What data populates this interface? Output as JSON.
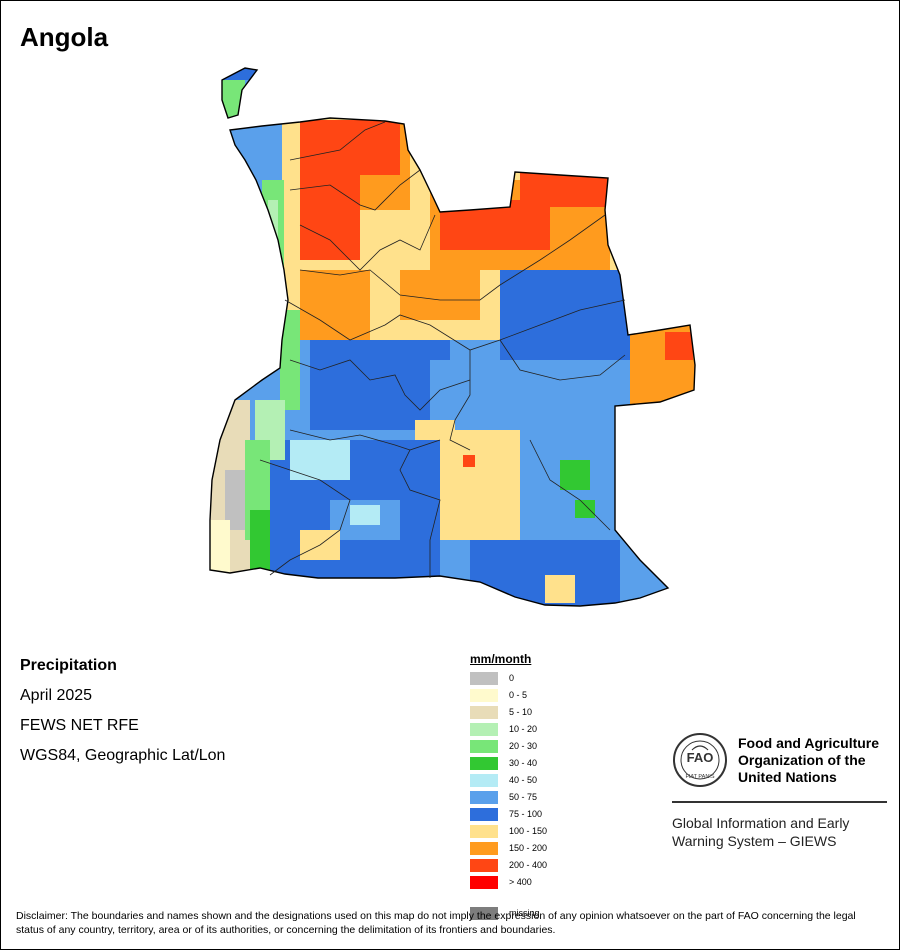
{
  "title": "Angola",
  "info": {
    "variable": "Precipitation",
    "period": "April 2025",
    "source": "FEWS NET RFE",
    "projection": "WGS84, Geographic Lat/Lon"
  },
  "legend": {
    "title": "mm/month",
    "items": [
      {
        "label": "0",
        "color": "#c0c0c0"
      },
      {
        "label": "0 - 5",
        "color": "#fffacd"
      },
      {
        "label": "5 - 10",
        "color": "#e8dcb8"
      },
      {
        "label": "10 - 20",
        "color": "#b4f0b4"
      },
      {
        "label": "20 - 30",
        "color": "#78e678"
      },
      {
        "label": "30 - 40",
        "color": "#32c832"
      },
      {
        "label": "40 - 50",
        "color": "#b4ebf5"
      },
      {
        "label": "50 - 75",
        "color": "#5aa0eb"
      },
      {
        "label": "75 - 100",
        "color": "#2d6edc"
      },
      {
        "label": "100 - 150",
        "color": "#ffe18c"
      },
      {
        "label": "150 - 200",
        "color": "#ff9b1e"
      },
      {
        "label": "200 - 400",
        "color": "#ff4614"
      },
      {
        "label": "> 400",
        "color": "#ff0000"
      }
    ],
    "missing": {
      "label": "missing",
      "color": "#7d7d7d"
    }
  },
  "organization": {
    "logo_text": "FAO",
    "logo_motto": "FIAT PANIS",
    "name": "Food and Agriculture Organization of the United Nations",
    "system": "Global Information and Early Warning System – GIEWS"
  },
  "disclaimer": "Disclaimer: The boundaries and names shown and the designations used on this map do not imply the expression of any opinion whatsoever on the part of FAO concerning the legal status of any country, territory, area or of its authorities, or concerning the delimitation of its frontiers and boundaries."
}
